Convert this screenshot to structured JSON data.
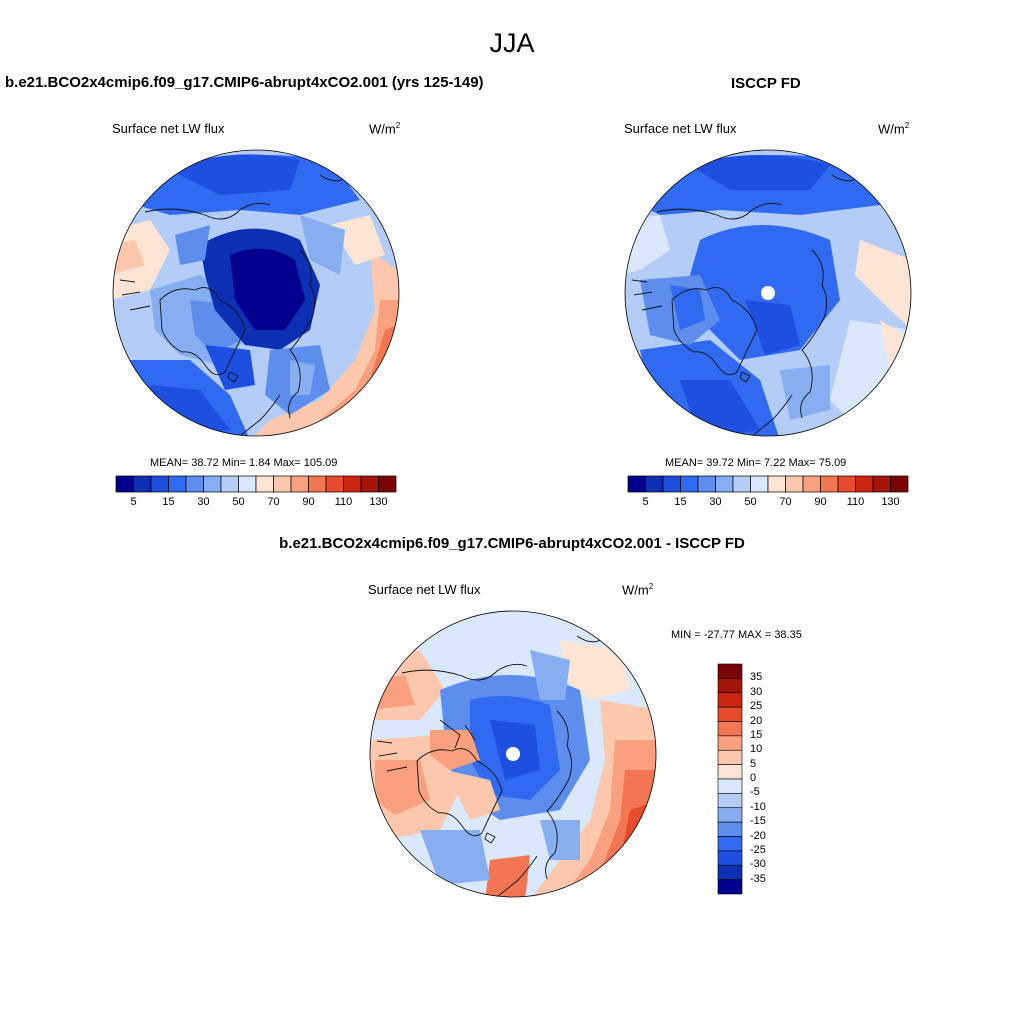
{
  "main_title": "JJA",
  "colors": {
    "scale": [
      "#00008c",
      "#0c2fb3",
      "#1d4fe0",
      "#2f6af0",
      "#5d8eee",
      "#88aef2",
      "#b4cdf6",
      "#dae8fb",
      "#fde5d6",
      "#fcc8ad",
      "#f9a17e",
      "#f37652",
      "#e84b2b",
      "#cc2611",
      "#a51408",
      "#7a0403"
    ],
    "coast": "#111111"
  },
  "panels": [
    {
      "title": "b.e21.BCO2x4cmip6.f09_g17.CMIP6-abrupt4xCO2.001 (yrs 125-149)",
      "left_label": "Surface net LW flux",
      "units_base": "W/m",
      "units_sup": "2",
      "stats": "MEAN=  38.72  Min=   1.84  Max= 105.09",
      "colorbar_ticks": [
        "5",
        "15",
        "30",
        "50",
        "70",
        "90",
        "110",
        "130"
      ]
    },
    {
      "title": "ISCCP FD",
      "left_label": "Surface net LW flux",
      "units_base": "W/m",
      "units_sup": "2",
      "stats": "MEAN=  39.72  Min=   7.22  Max=  75.09",
      "colorbar_ticks": [
        "5",
        "15",
        "30",
        "50",
        "70",
        "90",
        "110",
        "130"
      ]
    }
  ],
  "diff_panel": {
    "title": "b.e21.BCO2x4cmip6.f09_g17.CMIP6-abrupt4xCO2.001 - ISCCP FD",
    "left_label": "Surface net LW flux",
    "units_base": "W/m",
    "units_sup": "2",
    "stats": "MIN = -27.77 MAX =  38.35",
    "colorbar_ticks": [
      "35",
      "30",
      "25",
      "20",
      "15",
      "10",
      "5",
      "0",
      "-5",
      "-10",
      "-15",
      "-20",
      "-25",
      "-30",
      "-35"
    ]
  }
}
